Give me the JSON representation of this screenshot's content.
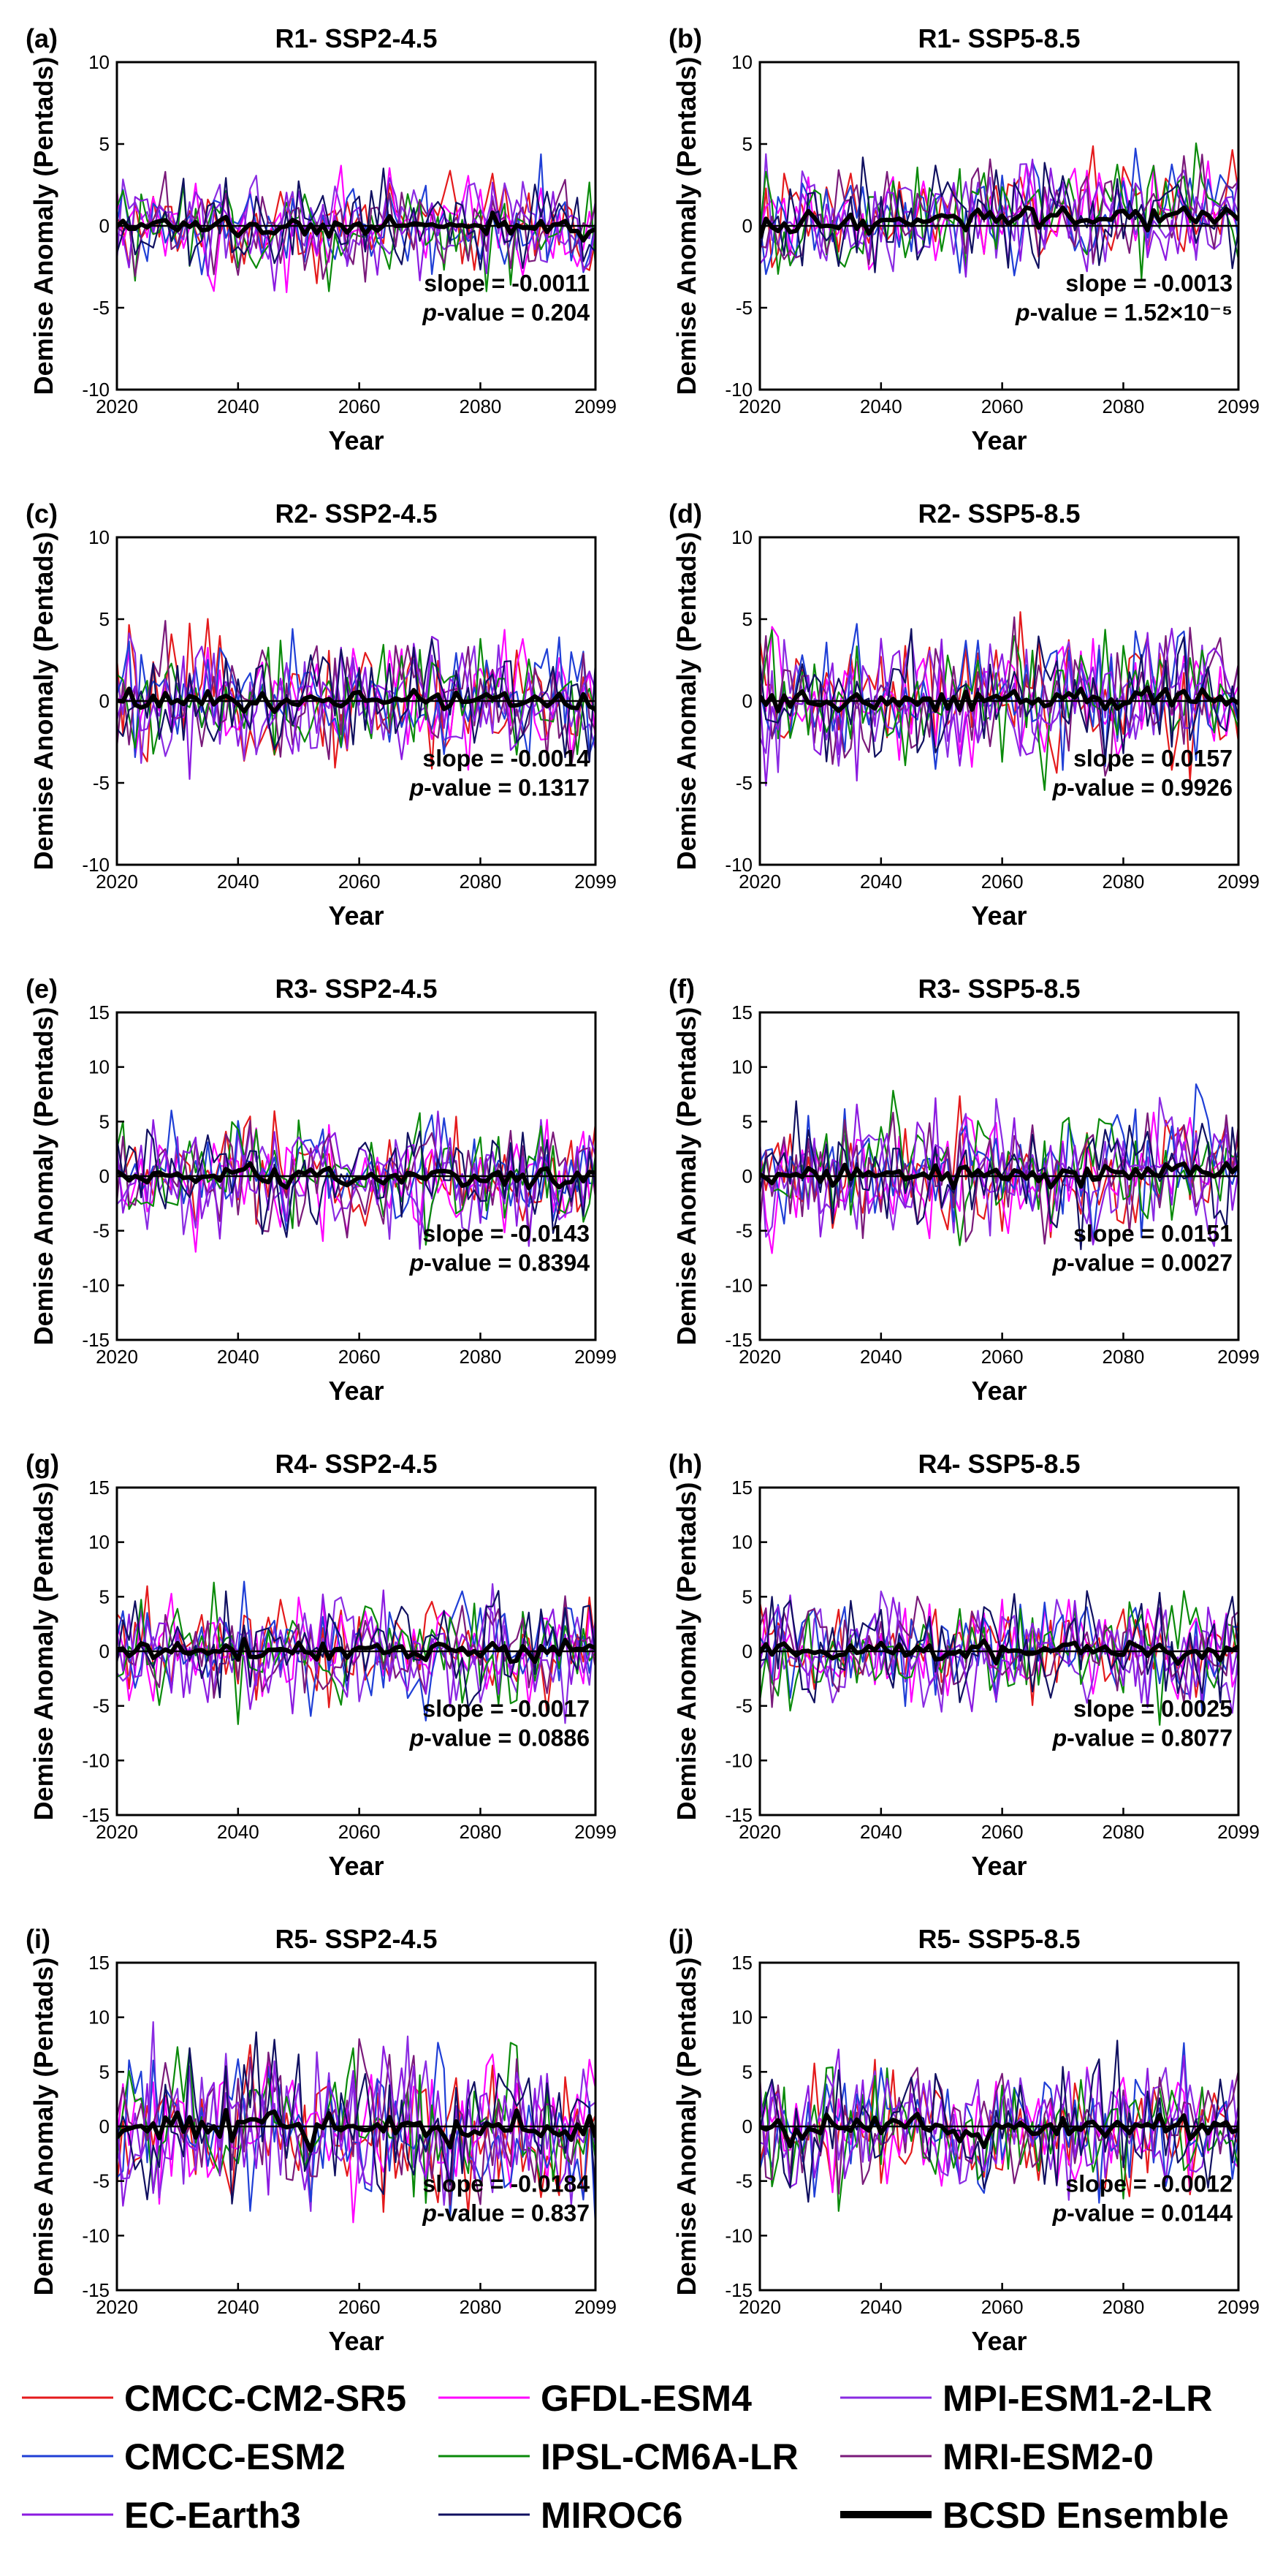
{
  "figure": {
    "xlabel": "Year",
    "ylabel": "Demise Anomaly (Pentads)",
    "xticks": [
      2020,
      2040,
      2060,
      2080,
      2099
    ],
    "xlim": [
      2020,
      2099
    ],
    "slope_label": "slope = ",
    "pvalue_label": "-value = ",
    "pvalue_italic": "p"
  },
  "legend": {
    "placement": "bottom",
    "entries": [
      {
        "name": "CMCC-CM2-SR5",
        "color": "#e41a1c",
        "width": 3
      },
      {
        "name": "GFDL-ESM4",
        "color": "#ff00ff",
        "width": 3
      },
      {
        "name": "MPI-ESM1-2-LR",
        "color": "#8a2be2",
        "width": 3
      },
      {
        "name": "CMCC-ESM2",
        "color": "#1f3fd6",
        "width": 3
      },
      {
        "name": "IPSL-CM6A-LR",
        "color": "#0a8a0a",
        "width": 3
      },
      {
        "name": "MRI-ESM2-0",
        "color": "#7a1a7a",
        "width": 3
      },
      {
        "name": "EC-Earth3",
        "color": "#8b1ae0",
        "width": 3
      },
      {
        "name": "MIROC6",
        "color": "#101060",
        "width": 3
      },
      {
        "name": "BCSD Ensemble",
        "color": "#000000",
        "width": 10
      }
    ]
  },
  "chart_data": [
    {
      "type": "line",
      "panel": "(a)",
      "title": "R1- SSP2-4.5",
      "ylim": [
        -10,
        10
      ],
      "yticks": [
        -10,
        -5,
        0,
        5,
        10
      ],
      "slope": "-0.0011",
      "pvalue": "0.204",
      "amplitude": 1.5,
      "trend": 0.0,
      "ensemble_amplitude": 0.5
    },
    {
      "type": "line",
      "panel": "(b)",
      "title": "R1- SSP5-8.5",
      "ylim": [
        -10,
        10
      ],
      "yticks": [
        -10,
        -5,
        0,
        5,
        10
      ],
      "slope": "-0.0013",
      "pvalue": "1.52×10⁻⁵",
      "amplitude": 1.6,
      "trend": 1.2,
      "ensemble_amplitude": 0.6
    },
    {
      "type": "line",
      "panel": "(c)",
      "title": "R2- SSP2-4.5",
      "ylim": [
        -10,
        10
      ],
      "yticks": [
        -10,
        -5,
        0,
        5,
        10
      ],
      "slope": "-0.0014",
      "pvalue": "0.1317",
      "amplitude": 1.9,
      "trend": 0.0,
      "ensemble_amplitude": 0.6
    },
    {
      "type": "line",
      "panel": "(d)",
      "title": "R2- SSP5-8.5",
      "ylim": [
        -10,
        10
      ],
      "yticks": [
        -10,
        -5,
        0,
        5,
        10
      ],
      "slope": "0.0157",
      "pvalue": "0.9926",
      "amplitude": 2.0,
      "trend": 0.0,
      "ensemble_amplitude": 0.6
    },
    {
      "type": "line",
      "panel": "(e)",
      "title": "R3- SSP2-4.5",
      "ylim": [
        -15,
        15
      ],
      "yticks": [
        -15,
        -10,
        -5,
        0,
        5,
        10,
        15
      ],
      "slope": "-0.0143",
      "pvalue": "0.8394",
      "amplitude": 2.6,
      "trend": 0.0,
      "ensemble_amplitude": 0.8
    },
    {
      "type": "line",
      "panel": "(f)",
      "title": "R3- SSP5-8.5",
      "ylim": [
        -15,
        15
      ],
      "yticks": [
        -15,
        -10,
        -5,
        0,
        5,
        10,
        15
      ],
      "slope": "0.0151",
      "pvalue": "0.0027",
      "amplitude": 2.9,
      "trend": 0.8,
      "ensemble_amplitude": 0.9
    },
    {
      "type": "line",
      "panel": "(g)",
      "title": "R4- SSP2-4.5",
      "ylim": [
        -15,
        15
      ],
      "yticks": [
        -15,
        -10,
        -5,
        0,
        5,
        10,
        15
      ],
      "slope": "-0.0017",
      "pvalue": "0.0886",
      "amplitude": 2.5,
      "trend": 0.0,
      "ensemble_amplitude": 0.8
    },
    {
      "type": "line",
      "panel": "(h)",
      "title": "R4- SSP5-8.5",
      "ylim": [
        -15,
        15
      ],
      "yticks": [
        -15,
        -10,
        -5,
        0,
        5,
        10,
        15
      ],
      "slope": "0.0025",
      "pvalue": "0.8077",
      "amplitude": 2.4,
      "trend": 0.0,
      "ensemble_amplitude": 0.8
    },
    {
      "type": "line",
      "panel": "(i)",
      "title": "R5- SSP2-4.5",
      "ylim": [
        -15,
        15
      ],
      "yticks": [
        -15,
        -10,
        -5,
        0,
        5,
        10,
        15
      ],
      "slope": "-0.0184",
      "pvalue": "0.837",
      "amplitude": 3.4,
      "trend": 0.0,
      "ensemble_amplitude": 1.1
    },
    {
      "type": "line",
      "panel": "(j)",
      "title": "R5- SSP5-8.5",
      "ylim": [
        -15,
        15
      ],
      "yticks": [
        -15,
        -10,
        -5,
        0,
        5,
        10,
        15
      ],
      "slope": "-0.0012",
      "pvalue": "0.0144",
      "amplitude": 3.0,
      "trend": 0.0,
      "ensemble_amplitude": 1.0
    }
  ]
}
